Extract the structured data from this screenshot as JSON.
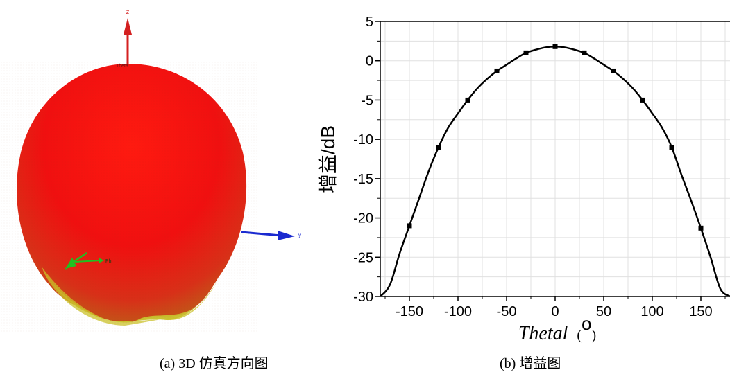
{
  "figure_3d": {
    "axis_labels": {
      "z": "z",
      "y": "y",
      "x": "x",
      "theta": "Theta",
      "phi": "Phi"
    },
    "colors": {
      "body": "#e81010",
      "body_top": "#ff2a1a",
      "bottom": "#c8c020",
      "z_axis": "#d42020",
      "y_axis": "#1a2ad0",
      "x_axis": "#20c020"
    }
  },
  "captions": {
    "a": "(a) 3D  仿真方向图",
    "b": "(b)  增益图"
  },
  "chart_data": {
    "type": "line",
    "ylabel": "增益/dB",
    "xlabel_main": "Thetal",
    "xlabel_unit_sup": "o",
    "xlim": [
      -180,
      180
    ],
    "ylim": [
      -30,
      5
    ],
    "x_ticks": [
      -150,
      -100,
      -50,
      0,
      50,
      100,
      150
    ],
    "y_ticks": [
      5,
      0,
      -5,
      -10,
      -15,
      -20,
      -25,
      -30
    ],
    "grid": true,
    "line_color": "#000000",
    "series": [
      {
        "values_x": [
          -180,
          -170,
          -160,
          -150,
          -140,
          -130,
          -120,
          -110,
          -100,
          -90,
          -80,
          -70,
          -60,
          -50,
          -40,
          -30,
          -20,
          -10,
          0,
          10,
          20,
          30,
          40,
          50,
          60,
          70,
          80,
          90,
          100,
          110,
          120,
          130,
          140,
          150,
          160,
          170,
          180
        ],
        "values_y": [
          -30,
          -28.5,
          -24.5,
          -21,
          -17.5,
          -14,
          -11,
          -8.5,
          -6.7,
          -5,
          -3.5,
          -2.3,
          -1.3,
          -0.5,
          0.3,
          1,
          1.4,
          1.7,
          1.8,
          1.7,
          1.4,
          1,
          0.3,
          -0.5,
          -1.3,
          -2.3,
          -3.5,
          -5,
          -6.7,
          -8.5,
          -11,
          -14.5,
          -17.8,
          -21.3,
          -25,
          -29,
          -30
        ]
      }
    ],
    "markers": {
      "x": [
        -150,
        -120,
        -90,
        -60,
        -30,
        0,
        30,
        60,
        90,
        120,
        150
      ],
      "y": [
        -21,
        -11,
        -5,
        -1.3,
        1,
        1.8,
        1,
        -1.3,
        -5,
        -11,
        -21.3
      ]
    }
  }
}
